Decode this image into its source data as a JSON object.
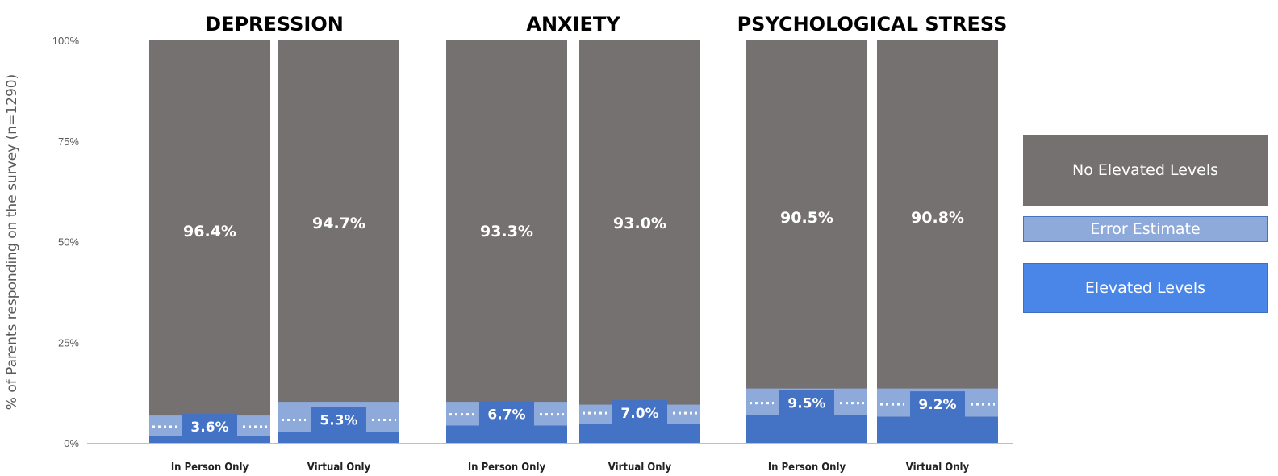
{
  "chart_data": {
    "type": "bar",
    "stacked": true,
    "ylabel": "% of Parents responding on the survey (n=1290)",
    "ylim": [
      0,
      100
    ],
    "yticks": [
      "0%",
      "25%",
      "50%",
      "75%",
      "100%"
    ],
    "panels": [
      {
        "title": "DEPRESSION",
        "categories": [
          "In Person Only",
          "Virtual Only"
        ],
        "elevated": [
          3.6,
          5.3
        ],
        "no_elevated": [
          96.4,
          94.7
        ],
        "elevated_labels": [
          "3.6%",
          "5.3%"
        ],
        "no_elevated_labels": [
          "96.4%",
          "94.7%"
        ],
        "error_low": [
          1.6,
          2.8
        ],
        "error_high": [
          6.8,
          10.2
        ]
      },
      {
        "title": "ANXIETY",
        "categories": [
          "In Person Only",
          "Virtual Only"
        ],
        "elevated": [
          6.7,
          7.0
        ],
        "no_elevated": [
          93.3,
          93.0
        ],
        "elevated_labels": [
          "6.7%",
          "7.0%"
        ],
        "no_elevated_labels": [
          "93.3%",
          "93.0%"
        ],
        "error_low": [
          4.3,
          4.8
        ],
        "error_high": [
          10.2,
          9.5
        ]
      },
      {
        "title": "PSYCHOLOGICAL STRESS",
        "categories": [
          "In Person Only",
          "Virtual Only"
        ],
        "elevated": [
          9.5,
          9.2
        ],
        "no_elevated": [
          90.5,
          90.8
        ],
        "elevated_labels": [
          "9.5%",
          "9.2%"
        ],
        "no_elevated_labels": [
          "90.5%",
          "90.8%"
        ],
        "error_low": [
          6.8,
          6.5
        ],
        "error_high": [
          13.5,
          13.5
        ]
      }
    ],
    "legend": {
      "position": "right",
      "items": [
        {
          "label": "No Elevated Levels",
          "color": "#767171"
        },
        {
          "label": "Error Estimate",
          "color": "#8eaadb"
        },
        {
          "label": "Elevated Levels",
          "color": "#4472c4"
        }
      ]
    },
    "colors": {
      "no_elevated": "#767171",
      "error": "#8eaadb",
      "elevated": "#4472c4",
      "elevated_label_bg": "#4472c4"
    }
  }
}
